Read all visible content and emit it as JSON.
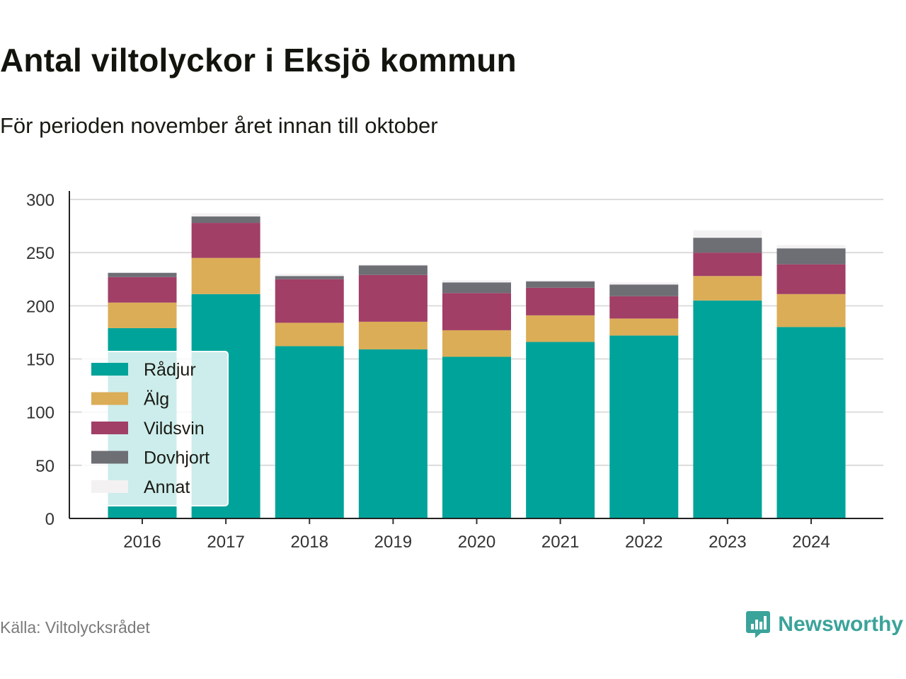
{
  "header": {
    "title": "Antal viltolyckor i Eksjö kommun",
    "subtitle": "För perioden november året innan till oktober"
  },
  "footer": {
    "source": "Källa: Viltolycksrådet",
    "brand": "Newsworthy",
    "brand_icon": "bar-chart-logo-icon",
    "brand_color": "#3aa39a"
  },
  "chart_data": {
    "type": "bar",
    "stacked": true,
    "categories": [
      "2016",
      "2017",
      "2018",
      "2019",
      "2020",
      "2021",
      "2022",
      "2023",
      "2024"
    ],
    "series": [
      {
        "name": "Rådjur",
        "color": "#00a39a",
        "values": [
          179,
          211,
          162,
          159,
          152,
          166,
          172,
          205,
          180
        ]
      },
      {
        "name": "Älg",
        "color": "#dbad57",
        "values": [
          24,
          34,
          22,
          26,
          25,
          25,
          16,
          23,
          31
        ]
      },
      {
        "name": "Vildsvin",
        "color": "#a13f66",
        "values": [
          24,
          33,
          41,
          44,
          35,
          26,
          21,
          22,
          28
        ]
      },
      {
        "name": "Dovhjort",
        "color": "#6e6e75",
        "values": [
          4,
          6,
          3,
          9,
          10,
          6,
          11,
          14,
          15
        ]
      },
      {
        "name": "Annat",
        "color": "#f3f1f2",
        "values": [
          0,
          3,
          2,
          1,
          2,
          1,
          2,
          7,
          3
        ]
      }
    ],
    "yticks": [
      0,
      50,
      100,
      150,
      200,
      250,
      300
    ],
    "ylim": [
      0,
      300
    ],
    "grid": true,
    "legend_position": "bottom-left"
  }
}
